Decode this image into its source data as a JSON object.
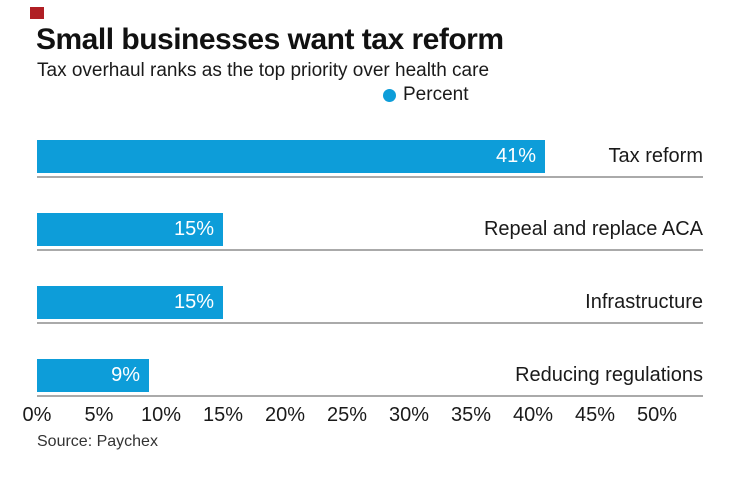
{
  "brand": {
    "mark_color": "#b01f24"
  },
  "header": {
    "title": "Small businesses want tax reform",
    "subtitle": "Tax overhaul ranks as the top priority over health care"
  },
  "legend": {
    "label": "Percent",
    "dot_color": "#0d9dd9"
  },
  "chart_data": {
    "type": "bar",
    "orientation": "horizontal",
    "title": "Small businesses want tax reform",
    "subtitle": "Tax overhaul ranks as the top priority over health care",
    "series_name": "Percent",
    "categories": [
      "Tax reform",
      "Repeal and replace ACA",
      "Infrastructure",
      "Reducing regulations"
    ],
    "values": [
      41,
      15,
      15,
      9
    ],
    "value_labels": [
      "41%",
      "15%",
      "15%",
      "9%"
    ],
    "xlim": [
      0,
      50
    ],
    "x_tick_labels": [
      "0%",
      "5%",
      "10%",
      "15%",
      "20%",
      "25%",
      "30%",
      "35%",
      "40%",
      "45%",
      "50%"
    ],
    "bar_color": "#0d9dd9",
    "baseline_color": "#aaaaaa",
    "grid": "off",
    "legend_position": "top-center"
  },
  "footer": {
    "source": "Source: Paychex"
  }
}
